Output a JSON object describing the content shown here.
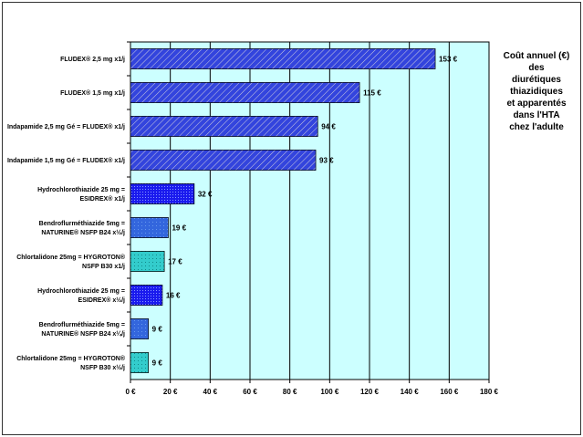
{
  "chart_data": {
    "type": "bar",
    "orientation": "horizontal",
    "title": "Coût annuel (€) des diurétiques thiazidiques et apparentés dans l'HTA chez l'adulte",
    "title_lines": [
      "Coût annuel (€)",
      "des",
      "diurétiques",
      "thiazidiques",
      "et apparentés",
      "dans l'HTA",
      "chez l'adulte"
    ],
    "categories": [
      [
        "FLUDEX® 2,5 mg x1/j"
      ],
      [
        "FLUDEX® 1,5 mg x1/j"
      ],
      [
        "Indapamide 2,5 mg Gé = FLUDEX® x1/j"
      ],
      [
        "Indapamide 1,5 mg Gé = FLUDEX® x1/j"
      ],
      [
        "Hydrochlorothiazide 25 mg =",
        "ESIDREX® x1/j"
      ],
      [
        "Bendroflurméthiazide 5mg =",
        "NATURINE® NSFP B24 x½/j"
      ],
      [
        "Chlortalidone 25mg = HYGROTON®",
        "NSFP B30 x1/j"
      ],
      [
        "Hydrochlorothiazide 25 mg =",
        "ESIDREX® x½/j"
      ],
      [
        "Bendroflurméthiazide 5mg =",
        "NATURINE® NSFP B24 x¼/j"
      ],
      [
        "Chlortalidone 25mg = HYGROTON®",
        "NSFP B30 x½/j"
      ]
    ],
    "values": [
      153,
      115,
      94,
      93,
      32,
      19,
      17,
      16,
      9,
      9
    ],
    "value_labels": [
      "153 €",
      "115 €",
      "94 €",
      "93 €",
      "32 €",
      "19 €",
      "17 €",
      "16 €",
      "9 €",
      "9 €"
    ],
    "fills": [
      "hatch",
      "hatch",
      "hatch",
      "hatch",
      "dots-dark",
      "dots-blue",
      "dots-teal",
      "dots-dark",
      "dots-blue",
      "dots-teal"
    ],
    "xlim": [
      0,
      180
    ],
    "xticks": [
      0,
      20,
      40,
      60,
      80,
      100,
      120,
      140,
      160,
      180
    ],
    "xtick_labels": [
      "0 €",
      "20 €",
      "40 €",
      "60 €",
      "80 €",
      "100 €",
      "120 €",
      "140 €",
      "160 €",
      "180 €"
    ],
    "grid": true,
    "colors": {
      "plot_bg": "#ccffff",
      "hatch": "#3344dd",
      "dark": "#1a1aee",
      "blue": "#3366dd",
      "teal": "#33cccc",
      "grid": "#000000"
    }
  }
}
